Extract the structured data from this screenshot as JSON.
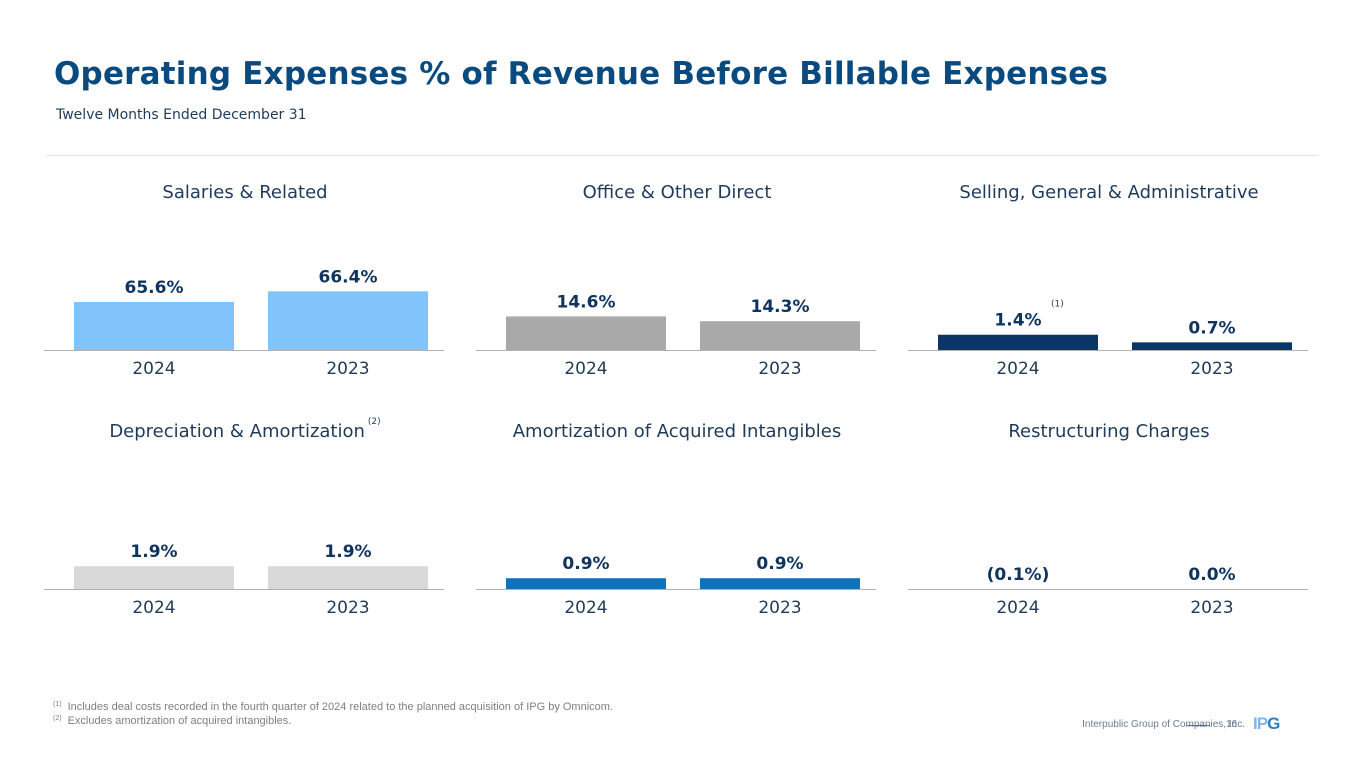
{
  "header": {
    "title": "Operating Expenses % of Revenue Before Billable Expenses",
    "subtitle": "Twelve Months Ended December 31"
  },
  "chart_data": [
    {
      "type": "bar",
      "title": "Salaries & Related",
      "footnote_ref": "",
      "categories": [
        "2024",
        "2023"
      ],
      "values": [
        65.6,
        66.4
      ],
      "labels": [
        "65.6%",
        "66.4%"
      ],
      "label_superscripts": [
        "",
        ""
      ],
      "color": "#80c4fb",
      "ylim": [
        62,
        71
      ]
    },
    {
      "type": "bar",
      "title": "Office & Other Direct",
      "footnote_ref": "",
      "categories": [
        "2024",
        "2023"
      ],
      "values": [
        14.6,
        14.3
      ],
      "labels": [
        "14.6%",
        "14.3%"
      ],
      "label_superscripts": [
        "",
        ""
      ],
      "color": "#a9a9a9",
      "ylim": [
        12.5,
        20
      ]
    },
    {
      "type": "bar",
      "title": "Selling, General & Administrative",
      "footnote_ref": "",
      "categories": [
        "2024",
        "2023"
      ],
      "values": [
        1.4,
        0.7
      ],
      "labels": [
        "1.4%",
        "0.7%"
      ],
      "label_superscripts": [
        "(1)",
        ""
      ],
      "color": "#0a3566",
      "ylim": [
        0,
        11
      ]
    },
    {
      "type": "bar",
      "title": "Depreciation & Amortization",
      "footnote_ref": "(2)",
      "categories": [
        "2024",
        "2023"
      ],
      "values": [
        1.9,
        1.9
      ],
      "labels": [
        "1.9%",
        "1.9%"
      ],
      "label_superscripts": [
        "",
        ""
      ],
      "color": "#d9d9d9",
      "ylim": [
        0,
        10
      ]
    },
    {
      "type": "bar",
      "title": "Amortization of Acquired Intangibles",
      "footnote_ref": "",
      "categories": [
        "2024",
        "2023"
      ],
      "values": [
        0.9,
        0.9
      ],
      "labels": [
        "0.9%",
        "0.9%"
      ],
      "label_superscripts": [
        "",
        ""
      ],
      "color": "#0e72bd",
      "ylim": [
        0,
        10
      ]
    },
    {
      "type": "bar",
      "title": "Restructuring Charges",
      "footnote_ref": "",
      "categories": [
        "2024",
        "2023"
      ],
      "values": [
        -0.1,
        0.0
      ],
      "labels": [
        "(0.1%)",
        "0.0%"
      ],
      "label_superscripts": [
        "",
        ""
      ],
      "color": "#0a3566",
      "ylim": [
        0,
        10
      ]
    }
  ],
  "footnotes": [
    {
      "marker": "(1)",
      "text": "Includes deal costs recorded in the fourth quarter of 2024 related to the planned acquisition of IPG by Omnicom."
    },
    {
      "marker": "(2)",
      "text": "Excludes amortization of acquired intangibles."
    }
  ],
  "footer": {
    "company": "Interpublic Group of Companies, Inc.",
    "page_number": "16",
    "logo_text_a": "IP",
    "logo_text_b": "G"
  },
  "colors": {
    "title": "#0a4a7f",
    "text": "#1f3b5a",
    "axis": "#b0b0b0"
  }
}
